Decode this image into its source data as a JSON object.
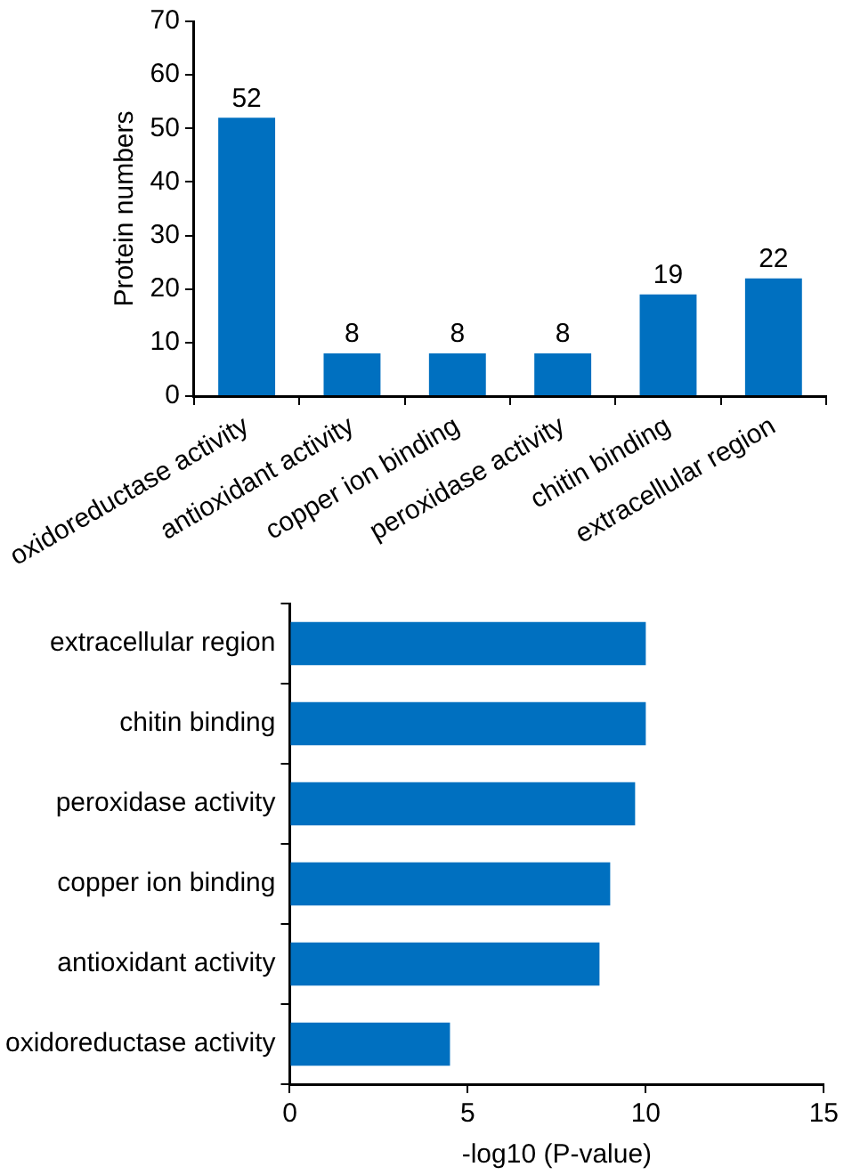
{
  "chart_data": [
    {
      "type": "bar",
      "ylabel": "Protein numbers",
      "categories": [
        "oxidoreductase activity",
        "antioxidant activity",
        "copper ion binding",
        "peroxidase activity",
        "chitin binding",
        "extracellular region"
      ],
      "values": [
        52,
        8,
        8,
        8,
        19,
        22
      ],
      "color": "#0070c0",
      "ylim": [
        0,
        70
      ],
      "yticks": [
        0,
        10,
        20,
        30,
        40,
        50,
        60,
        70
      ],
      "data_labels": true,
      "grid": false
    },
    {
      "type": "bar",
      "orientation": "horizontal",
      "xlabel": "-log10 (P-value)",
      "categories": [
        "extracellular region",
        "chitin binding",
        "peroxidase activity",
        "copper ion binding",
        "antioxidant activity",
        "oxidoreductase activity"
      ],
      "values": [
        10.0,
        10.0,
        9.7,
        9.0,
        8.7,
        4.5
      ],
      "color": "#0070c0",
      "xlim": [
        0,
        15
      ],
      "xticks": [
        0,
        5,
        10,
        15
      ],
      "grid": false
    }
  ]
}
